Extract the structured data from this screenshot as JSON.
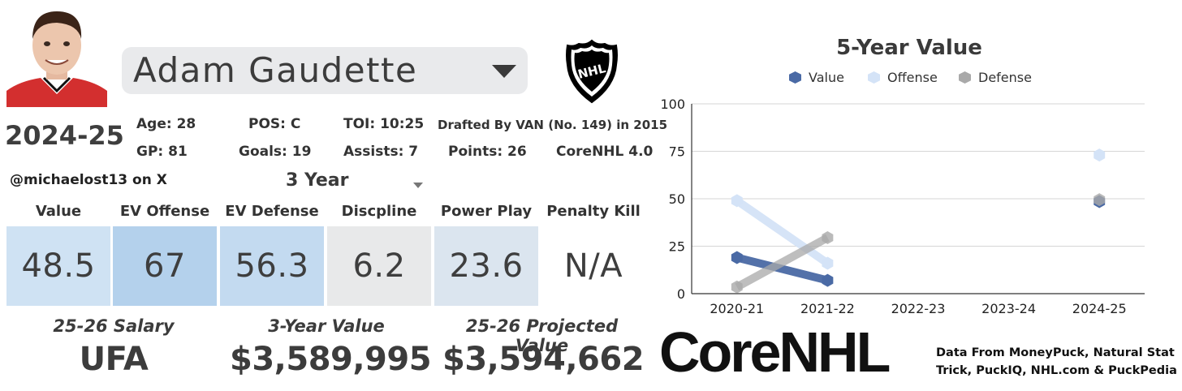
{
  "player": {
    "name": "Adam Gaudette"
  },
  "season": "2024-25",
  "stats": {
    "age": "Age: 28",
    "pos": "POS: C",
    "toi": "TOI: 10:25",
    "drafted": "Drafted By VAN (No. 149) in 2015",
    "gp": "GP: 81",
    "goals": "Goals: 19",
    "assists": "Assists: 7",
    "points": "Points: 26",
    "corenhl": "CoreNHL 4.0"
  },
  "handle": "@michaelost13 on X",
  "range_select": {
    "value": "3 Year"
  },
  "metrics": [
    {
      "label": "Value",
      "value": "48.5",
      "color": "#cfe2f3"
    },
    {
      "label": "EV Offense",
      "value": "67",
      "color": "#b4d1ec"
    },
    {
      "label": "EV Defense",
      "value": "56.3",
      "color": "#c3daf0"
    },
    {
      "label": "Discpline",
      "value": "6.2",
      "color": "#e8e9ea"
    },
    {
      "label": "Power Play",
      "value": "23.6",
      "color": "#dbe5ef"
    },
    {
      "label": "Penalty Kill",
      "value": "N/A",
      "color": "#ffffff"
    }
  ],
  "bottom": {
    "salary_label": "25-26 Salary",
    "salary_value": "UFA",
    "three_year_label": "3-Year Value",
    "three_year_value": "$3,589,995",
    "projected_label": "25-26 Projected Value",
    "projected_value": "$3,594,662"
  },
  "brand": {
    "core": "Core",
    "nhl": "NHL"
  },
  "source_text": "Data From MoneyPuck, Natural Stat Trick, PuckIQ, NHL.com & PuckPedia",
  "chart_data": {
    "type": "line",
    "title": "5-Year Value",
    "categories": [
      "2020-21",
      "2021-22",
      "2022-23",
      "2023-24",
      "2024-25"
    ],
    "ylim": [
      0,
      100
    ],
    "yticks": [
      0,
      25,
      50,
      75,
      100
    ],
    "grid": true,
    "legend": "top",
    "series": [
      {
        "name": "Value",
        "color": "#4a6aa5",
        "values": [
          19,
          7,
          null,
          null,
          48.5
        ]
      },
      {
        "name": "Offense",
        "color": "#d4e3f7",
        "values": [
          49,
          16,
          null,
          null,
          73
        ]
      },
      {
        "name": "Defense",
        "color": "#a9a9a9",
        "values": [
          3.5,
          29.5,
          null,
          null,
          49.5
        ]
      }
    ]
  }
}
